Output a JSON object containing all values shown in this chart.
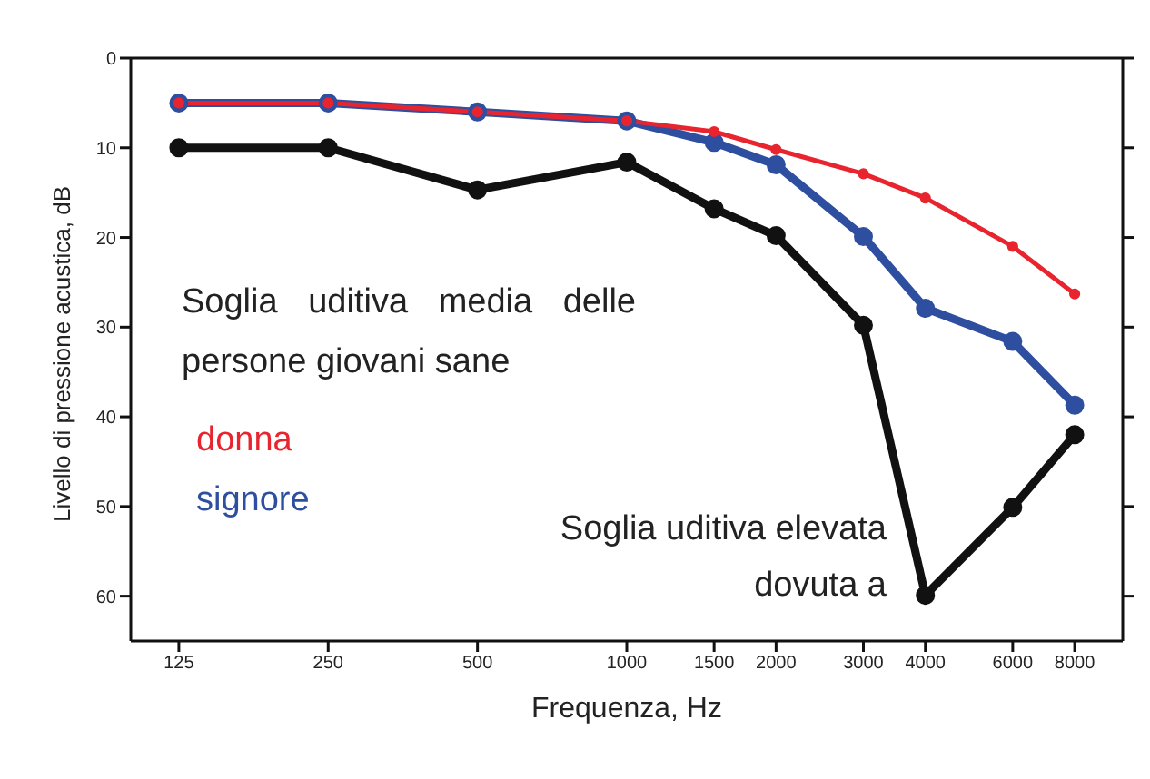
{
  "chart_data": {
    "type": "line",
    "xlabel": "Frequenza, Hz",
    "ylabel": "Livello di pressione acustica, dB",
    "x": [
      125,
      250,
      500,
      1000,
      1500,
      2000,
      3000,
      4000,
      6000,
      8000
    ],
    "series": [
      {
        "name": "donna",
        "color": "#e8242e",
        "values": [
          5,
          5,
          6,
          7,
          8.2,
          10.2,
          12.9,
          15.6,
          21,
          26.3
        ]
      },
      {
        "name": "signore",
        "color": "#2e4ea0",
        "values": [
          5,
          5,
          6,
          7,
          9.4,
          11.9,
          19.9,
          27.9,
          31.6,
          38.7
        ]
      },
      {
        "color": "#111111",
        "values": [
          10,
          10,
          14.7,
          11.6,
          16.8,
          19.8,
          29.8,
          59.9,
          50.1,
          42
        ]
      }
    ],
    "log": "x",
    "xlim": [
      100,
      10000
    ],
    "xticks": [
      125,
      250,
      500,
      1000,
      1500,
      2000,
      3000,
      4000,
      6000,
      8000
    ],
    "ylim": [
      65,
      0
    ],
    "yticks": [
      0,
      10,
      20,
      30,
      40,
      50,
      60
    ],
    "grid": false,
    "marker": "circle",
    "line_style": "solid",
    "legend": "left",
    "annotations": [
      "Soglia uditiva media delle persone giovani sane",
      "Soglia uditiva elevata dovuta a"
    ]
  }
}
